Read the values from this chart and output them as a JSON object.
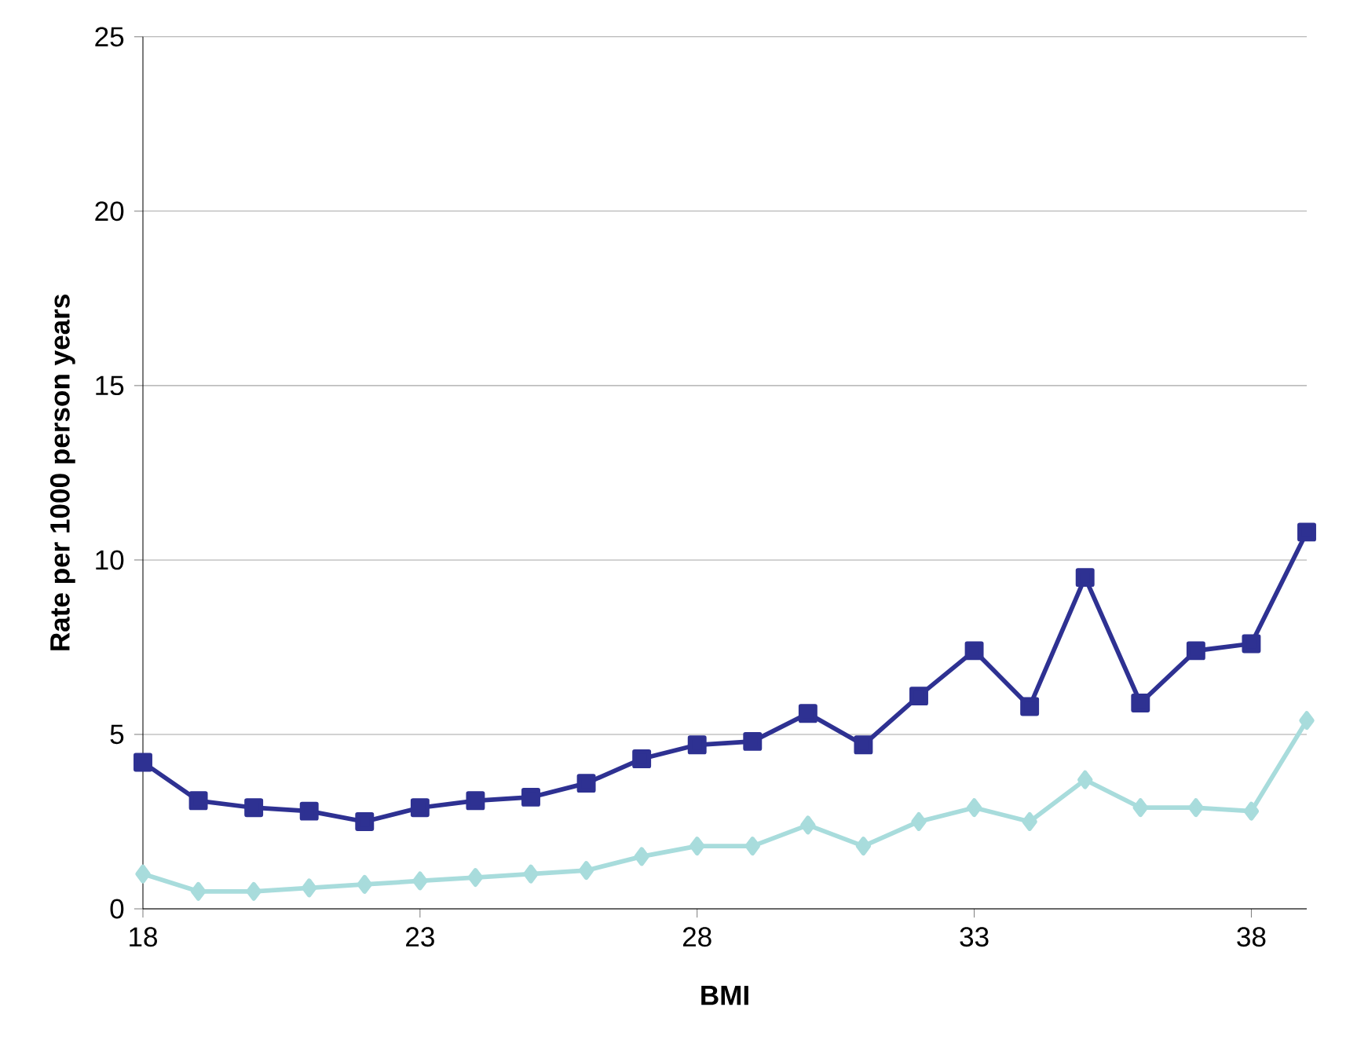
{
  "chart_data": {
    "type": "line",
    "xlabel": "BMI",
    "ylabel": "Rate per 1000 person years",
    "x": [
      18,
      19,
      20,
      21,
      22,
      23,
      24,
      25,
      26,
      27,
      28,
      29,
      30,
      31,
      32,
      33,
      34,
      35,
      36,
      37,
      38,
      39
    ],
    "series": [
      {
        "color": "#2e3192",
        "marker": "square",
        "values": [
          4.2,
          3.1,
          2.9,
          2.8,
          2.5,
          2.9,
          3.1,
          3.2,
          3.6,
          4.3,
          4.7,
          4.8,
          5.6,
          4.7,
          6.1,
          7.4,
          5.8,
          9.5,
          5.9,
          7.4,
          7.6,
          10.8
        ]
      },
      {
        "color": "#a8dcdc",
        "marker": "diamond",
        "values": [
          1.0,
          0.5,
          0.5,
          0.6,
          0.7,
          0.8,
          0.9,
          1.0,
          1.1,
          1.5,
          1.8,
          1.8,
          2.4,
          1.8,
          2.5,
          2.9,
          2.5,
          3.7,
          2.9,
          2.9,
          2.8,
          5.4
        ]
      }
    ],
    "xlim": [
      18,
      39
    ],
    "xticks": [
      18,
      23,
      28,
      33,
      38
    ],
    "ylim": [
      0,
      25
    ],
    "yticks": [
      0,
      5,
      10,
      15,
      20,
      25
    ],
    "grid": "y",
    "line_style": "solid"
  }
}
